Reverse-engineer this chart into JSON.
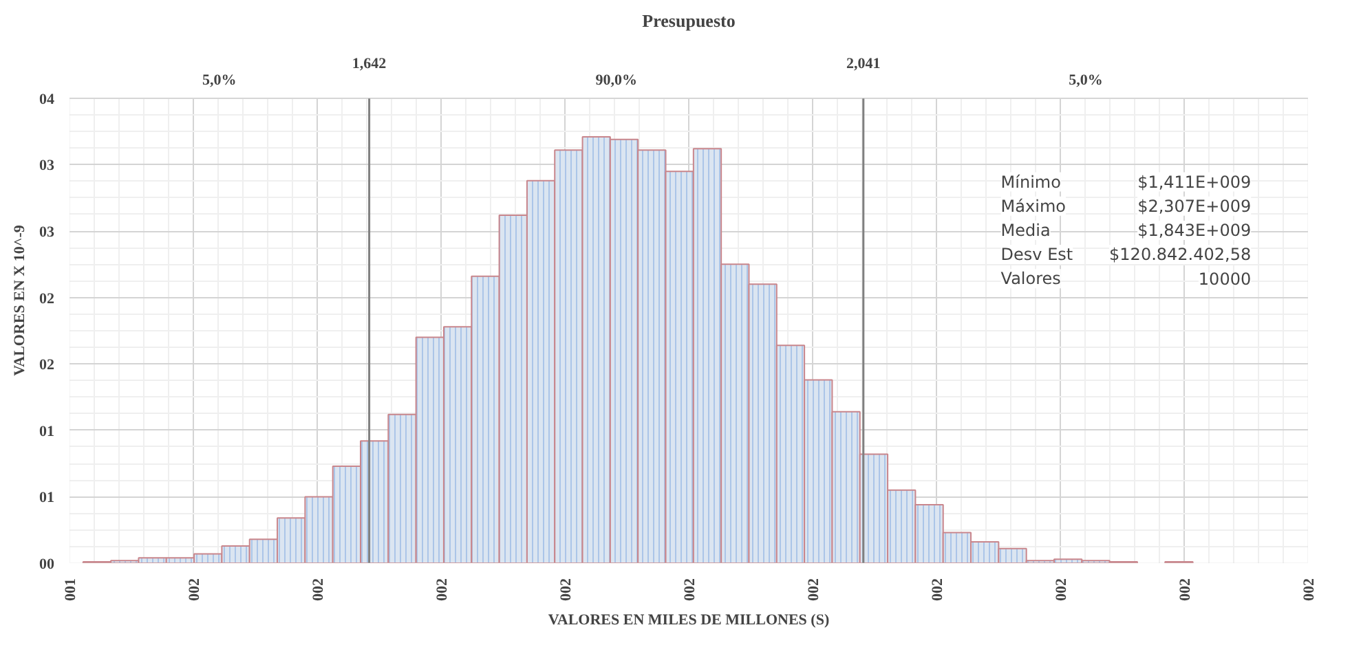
{
  "chart_data": {
    "type": "histogram",
    "title": "Presupuesto",
    "xlabel": "VALORES EN MILES DE MILLONES (S)",
    "ylabel": "VALORES EN X 10^-9",
    "bins": [
      1.411,
      1.4334,
      1.4558,
      1.4782,
      1.5006,
      1.523,
      1.5454,
      1.5678,
      1.5902,
      1.6126,
      1.635,
      1.6574,
      1.6798,
      1.7022,
      1.7246,
      1.747,
      1.7694,
      1.7918,
      1.8142,
      1.8366,
      1.859,
      1.8814,
      1.9038,
      1.9262,
      1.9486,
      1.971,
      1.9934,
      2.0158,
      2.0382,
      2.0606,
      2.083,
      2.1054,
      2.1278,
      2.1502,
      2.1726,
      2.195,
      2.2174,
      2.2398,
      2.2622,
      2.2846,
      2.307
    ],
    "values": [
      0.01,
      0.02,
      0.04,
      0.04,
      0.07,
      0.13,
      0.18,
      0.34,
      0.5,
      0.73,
      0.92,
      1.12,
      1.7,
      1.78,
      2.16,
      2.62,
      2.88,
      3.11,
      3.21,
      3.19,
      3.11,
      2.95,
      3.12,
      2.25,
      2.1,
      1.64,
      1.38,
      1.14,
      0.82,
      0.55,
      0.44,
      0.23,
      0.16,
      0.11,
      0.02,
      0.03,
      0.02,
      0.01,
      null,
      0.01
    ],
    "color": "#dbe5f1",
    "xlim": [
      1.4,
      2.4
    ],
    "xticks": [
      {
        "value": 1.4,
        "label": "001"
      },
      {
        "value": 1.5,
        "label": "002"
      },
      {
        "value": 1.6,
        "label": "002"
      },
      {
        "value": 1.7,
        "label": "002"
      },
      {
        "value": 1.8,
        "label": "002"
      },
      {
        "value": 1.9,
        "label": "002"
      },
      {
        "value": 2.0,
        "label": "002"
      },
      {
        "value": 2.1,
        "label": "002"
      },
      {
        "value": 2.2,
        "label": "002"
      },
      {
        "value": 2.3,
        "label": "002"
      },
      {
        "value": 2.4,
        "label": "002"
      }
    ],
    "ylim": [
      0,
      3.5
    ],
    "yticks": [
      {
        "value": 0,
        "label": "00"
      },
      {
        "value": 0.5,
        "label": "01"
      },
      {
        "value": 1,
        "label": "01"
      },
      {
        "value": 1.5,
        "label": "02"
      },
      {
        "value": 2,
        "label": "02"
      },
      {
        "value": 2.5,
        "label": "03"
      },
      {
        "value": 3,
        "label": "03"
      },
      {
        "value": 3.5,
        "label": "04"
      }
    ],
    "ref_lines": [
      {
        "axis": "x",
        "value": 1.642,
        "label": "1,642",
        "color": "#808080"
      },
      {
        "axis": "x",
        "value": 2.041,
        "label": "2,041",
        "color": "#808080"
      }
    ],
    "annotations": [
      "5,0%",
      "90,0%",
      "5,0%",
      "Mínimo",
      "$1,411E+009",
      "Máximo",
      "$2,307E+009",
      "Media",
      "$1,843E+009",
      "Desv Est",
      "$120.842.402,58",
      "Valores",
      "10000"
    ],
    "grid": true
  }
}
